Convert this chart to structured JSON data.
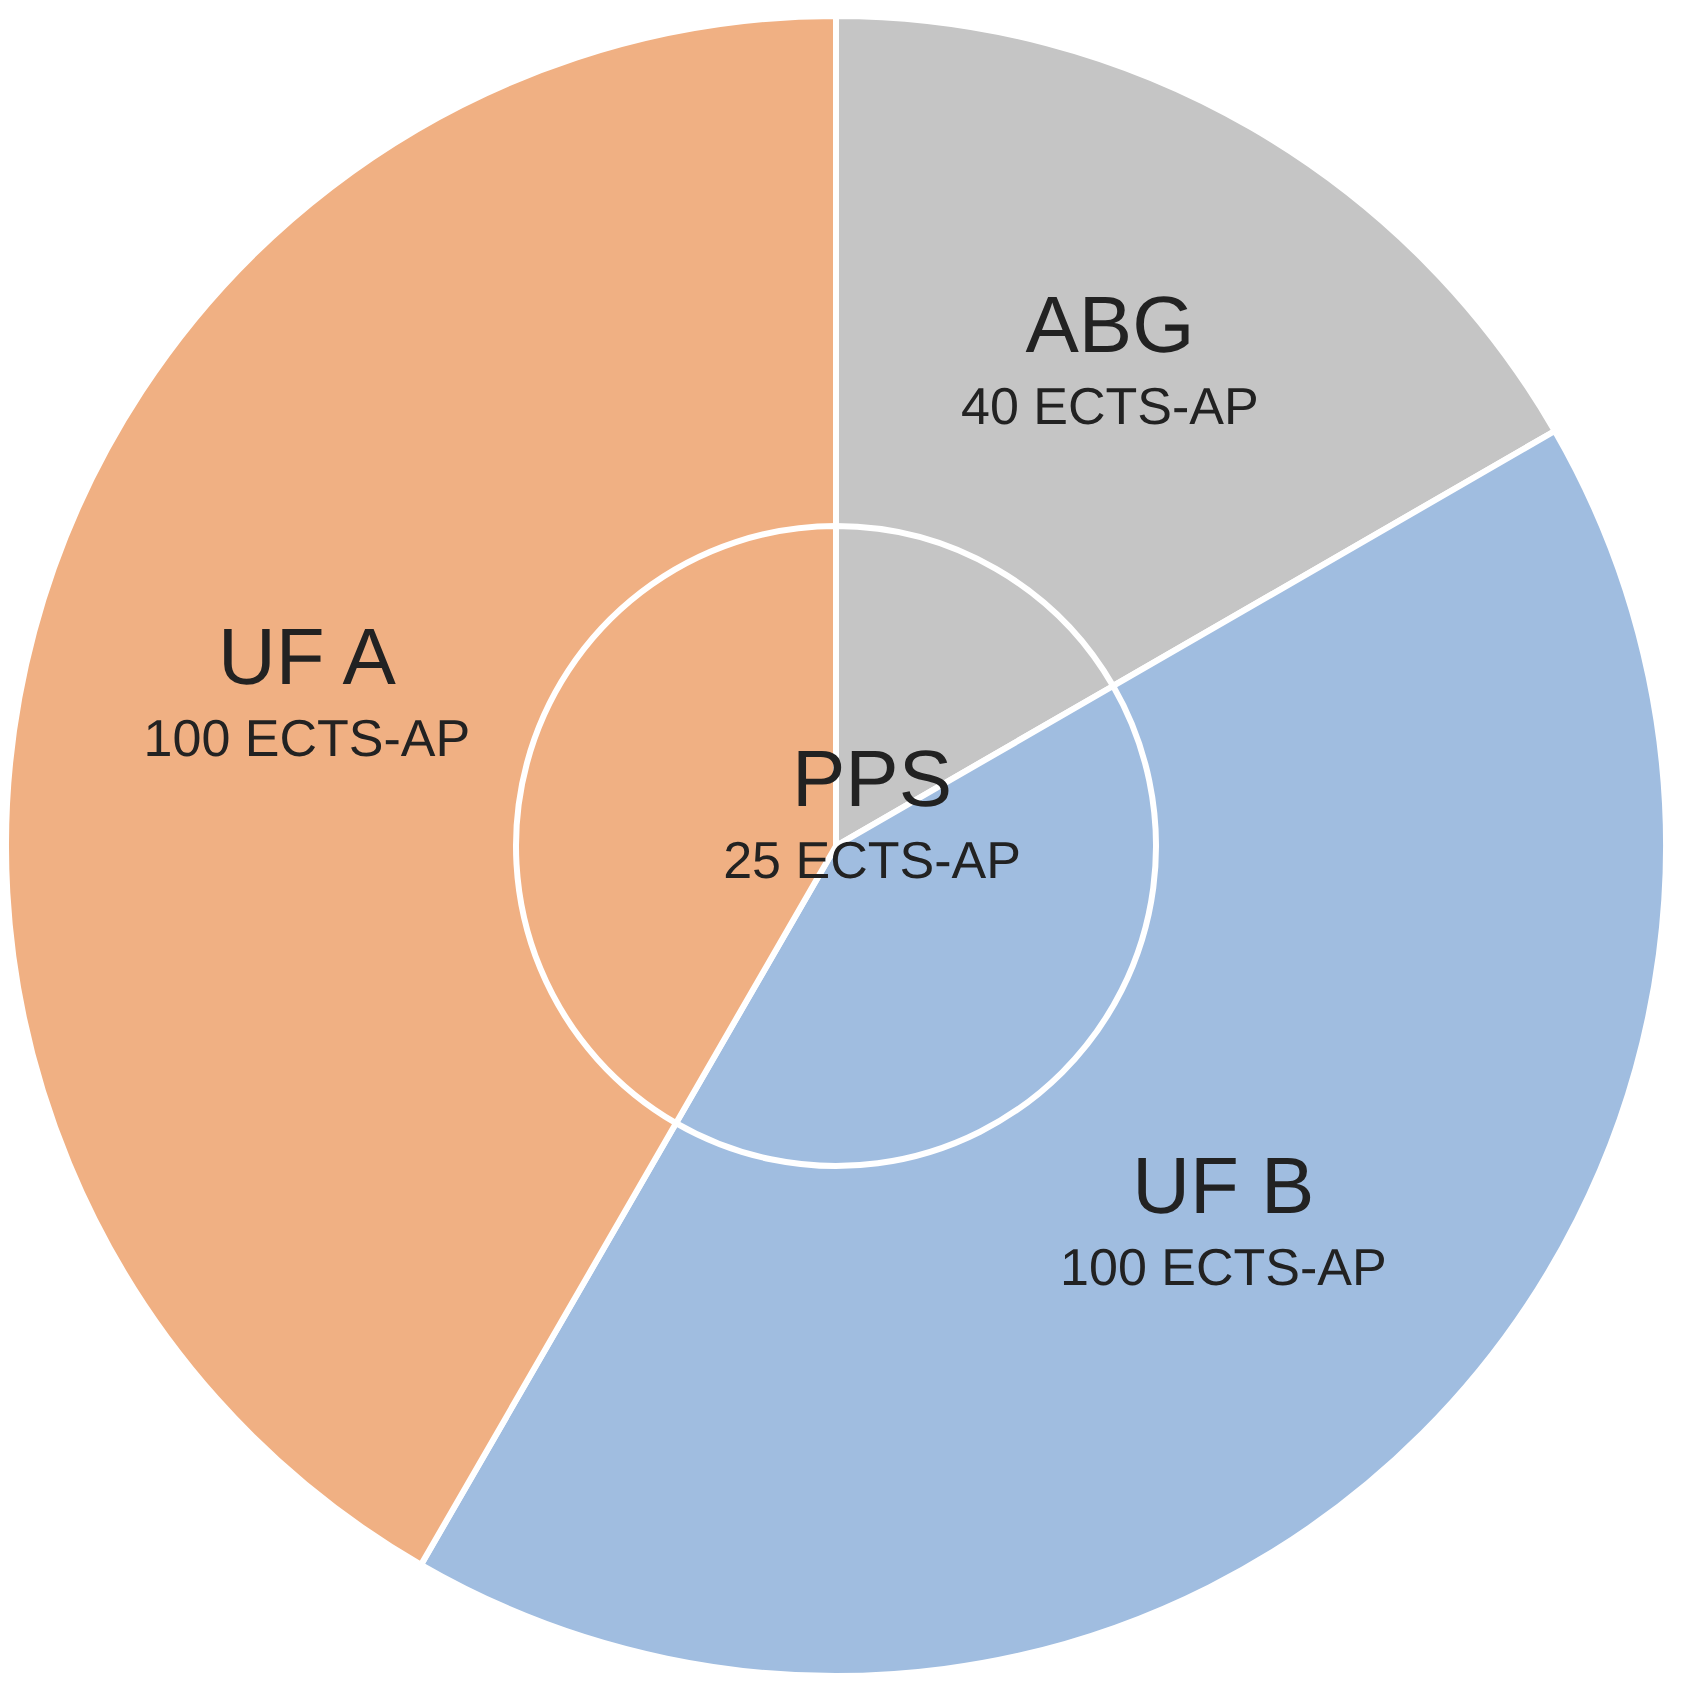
{
  "chart_data": {
    "type": "pie",
    "categories": [
      "ABG",
      "UF B",
      "UF A"
    ],
    "values": [
      40,
      100,
      100
    ],
    "colors": [
      "#c5c5c5",
      "#a0bde0",
      "#f0b083"
    ],
    "value_labels": [
      "40 ECTS-AP",
      "100 ECTS-AP",
      "100 ECTS-AP"
    ],
    "annotations": [
      "PPS",
      "25 ECTS-AP"
    ]
  }
}
